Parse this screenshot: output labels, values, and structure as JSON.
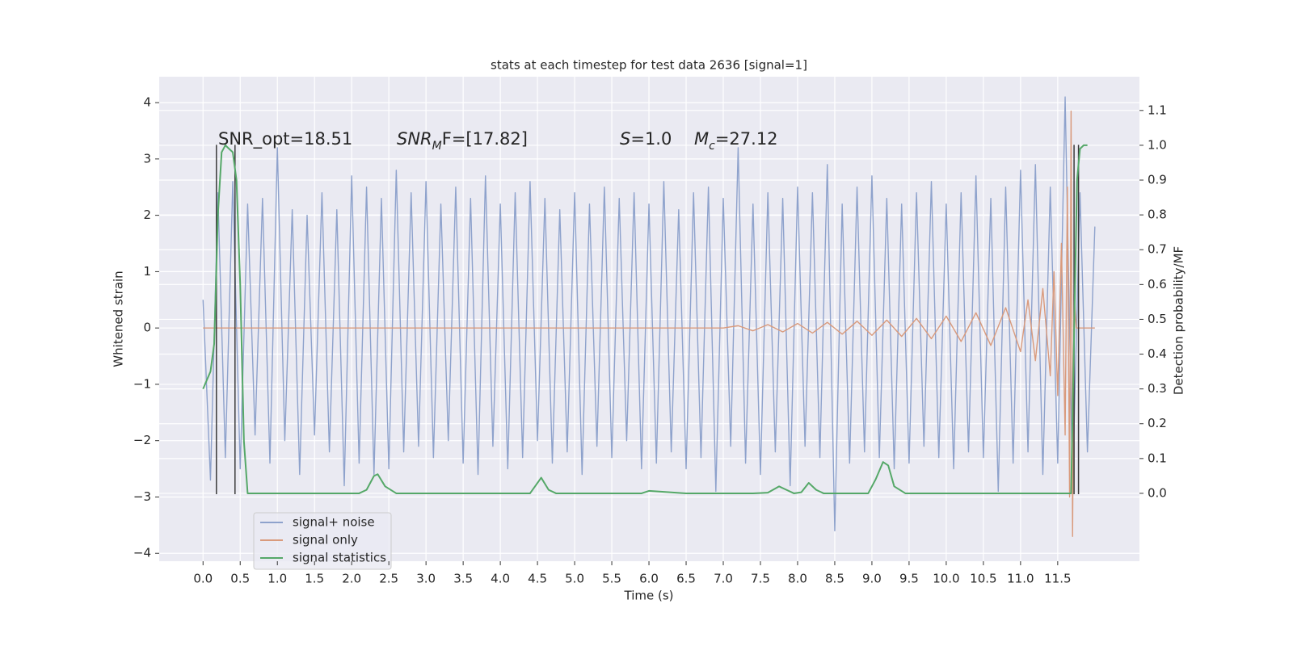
{
  "chart_data": {
    "type": "line",
    "title": "stats at each timestep for test data 2636 [signal=1]",
    "xlabel": "Time (s)",
    "ylabel": "Whitened strain",
    "y2label": "Detection probability/MF",
    "xlim": [
      -0.59,
      12.6
    ],
    "ylim": [
      -4.14,
      4.46
    ],
    "y2lim": [
      -0.195,
      1.197
    ],
    "xticks": [
      {
        "value": 0,
        "label": "0.0"
      },
      0.5,
      {
        "value": 1,
        "label": "1.0"
      },
      1.5,
      {
        "value": 2,
        "label": "2.0"
      },
      2.5,
      {
        "value": 3,
        "label": "3.0"
      },
      3.5,
      {
        "value": 4,
        "label": "4.0"
      },
      4.5,
      {
        "value": 5,
        "label": "5.0"
      },
      5.5,
      {
        "value": 6,
        "label": "6.0"
      },
      6.5,
      {
        "value": 7,
        "label": "7.0"
      },
      7.5,
      {
        "value": 8,
        "label": "8.0"
      },
      8.5,
      {
        "value": 9,
        "label": "9.0"
      },
      9.5,
      {
        "value": 10,
        "label": "10.0"
      },
      10.5,
      {
        "value": 11,
        "label": "11.0"
      },
      11.5
    ],
    "yticks": [
      {
        "value": -4,
        "label": "−4"
      },
      {
        "value": -3,
        "label": "−3"
      },
      {
        "value": -2,
        "label": "−2"
      },
      {
        "value": -1,
        "label": "−1"
      },
      0,
      1,
      2,
      3,
      4
    ],
    "y2ticks": [
      {
        "value": 0,
        "label": "0.0"
      },
      0.1,
      0.2,
      0.3,
      0.4,
      0.5,
      0.6,
      0.7,
      0.8,
      0.9,
      {
        "value": 1,
        "label": "1.0"
      },
      1.1
    ],
    "grid": true,
    "annotations": [
      {
        "parts": [
          {
            "text": "SNR_opt=18.51"
          }
        ]
      },
      {
        "parts": [
          {
            "text": "SNR",
            "style": "italic"
          },
          {
            "text": "M",
            "style": "sub"
          },
          {
            "text": "F=[17.82]"
          }
        ]
      },
      {
        "parts": [
          {
            "text": "S",
            "style": "italic"
          },
          {
            "text": "=1.0"
          }
        ]
      },
      {
        "parts": [
          {
            "text": "M",
            "style": "italic"
          },
          {
            "text": "c",
            "style": "sub"
          },
          {
            "text": "=27.12"
          }
        ]
      }
    ],
    "vlines": {
      "x": [
        0.18,
        0.43,
        11.72,
        11.78
      ],
      "ymin": -2.95,
      "ymax": 3.25,
      "color": "#3a3a3a"
    },
    "series": [
      {
        "name": "signal+ noise",
        "color": "#8ea2cc",
        "x": [
          0,
          0.1,
          0.2,
          0.3,
          0.4,
          0.5,
          0.6,
          0.7,
          0.8,
          0.9,
          1,
          1.1,
          1.2,
          1.3,
          1.4,
          1.5,
          1.6,
          1.7,
          1.8,
          1.9,
          2,
          2.1,
          2.2,
          2.3,
          2.4,
          2.5,
          2.6,
          2.7,
          2.8,
          2.9,
          3,
          3.1,
          3.2,
          3.3,
          3.4,
          3.5,
          3.6,
          3.7,
          3.8,
          3.9,
          4,
          4.1,
          4.2,
          4.3,
          4.4,
          4.5,
          4.6,
          4.7,
          4.8,
          4.9,
          5,
          5.1,
          5.2,
          5.3,
          5.4,
          5.5,
          5.6,
          5.7,
          5.8,
          5.9,
          6,
          6.1,
          6.2,
          6.3,
          6.4,
          6.5,
          6.6,
          6.7,
          6.8,
          6.9,
          7,
          7.1,
          7.2,
          7.3,
          7.4,
          7.5,
          7.6,
          7.7,
          7.8,
          7.9,
          8,
          8.1,
          8.2,
          8.3,
          8.4,
          8.5,
          8.6,
          8.7,
          8.8,
          8.9,
          9,
          9.1,
          9.2,
          9.3,
          9.4,
          9.5,
          9.6,
          9.7,
          9.8,
          9.9,
          10,
          10.1,
          10.2,
          10.3,
          10.4,
          10.5,
          10.6,
          10.7,
          10.8,
          10.9,
          11,
          11.1,
          11.2,
          11.3,
          11.4,
          11.5,
          11.6,
          11.7,
          11.8,
          11.9,
          12
        ],
        "values": [
          0.5,
          -2.7,
          2.4,
          -2.3,
          2.6,
          -2.5,
          2.2,
          -1.9,
          2.3,
          -2.4,
          3.2,
          -2.0,
          2.1,
          -2.6,
          2.0,
          -1.9,
          2.4,
          -2.2,
          2.1,
          -2.8,
          2.7,
          -2.4,
          2.5,
          -2.6,
          2.3,
          -2.5,
          2.8,
          -2.2,
          2.4,
          -2.1,
          2.6,
          -2.3,
          2.2,
          -2.0,
          2.5,
          -2.4,
          2.3,
          -2.6,
          2.7,
          -2.1,
          2.2,
          -2.5,
          2.4,
          -2.3,
          2.6,
          -2.0,
          2.3,
          -2.4,
          2.1,
          -2.2,
          2.4,
          -2.6,
          2.2,
          -2.1,
          2.5,
          -2.3,
          2.3,
          -2.0,
          2.4,
          -2.5,
          2.2,
          -2.4,
          2.6,
          -2.2,
          2.1,
          -2.5,
          2.4,
          -2.3,
          2.5,
          -2.9,
          2.3,
          -2.1,
          3.2,
          -2.4,
          2.2,
          -2.6,
          2.4,
          -2.2,
          2.3,
          -2.8,
          2.5,
          -2.1,
          2.4,
          -2.3,
          2.9,
          -3.6,
          2.2,
          -2.4,
          2.5,
          -2.2,
          2.7,
          -2.3,
          2.3,
          -2.5,
          2.2,
          -2.4,
          2.4,
          -2.1,
          2.6,
          -2.3,
          2.2,
          -2.5,
          2.4,
          -2.2,
          2.7,
          -2.3,
          2.3,
          -2.9,
          2.5,
          -2.4,
          2.8,
          -2.2,
          2.9,
          -2.6,
          2.5,
          -2.4,
          4.1,
          -2.8,
          2.4,
          -2.2,
          1.8
        ]
      },
      {
        "name": "signal only",
        "color": "#d99a7c",
        "x": [
          0,
          7.0,
          7.2,
          7.4,
          7.6,
          7.8,
          8.0,
          8.2,
          8.4,
          8.6,
          8.8,
          9.0,
          9.2,
          9.4,
          9.6,
          9.8,
          10.0,
          10.2,
          10.4,
          10.6,
          10.8,
          11.0,
          11.1,
          11.2,
          11.3,
          11.4,
          11.45,
          11.5,
          11.55,
          11.6,
          11.63,
          11.66,
          11.68,
          11.7,
          11.72,
          11.75,
          12.0
        ],
        "values": [
          0,
          0,
          0.04,
          -0.05,
          0.06,
          -0.07,
          0.08,
          -0.09,
          0.1,
          -0.11,
          0.12,
          -0.13,
          0.14,
          -0.15,
          0.17,
          -0.19,
          0.21,
          -0.24,
          0.27,
          -0.31,
          0.36,
          -0.42,
          0.5,
          -0.58,
          0.7,
          -0.85,
          1.0,
          -1.2,
          1.5,
          -1.9,
          2.5,
          -3.0,
          3.85,
          -3.7,
          0.6,
          0,
          0
        ]
      },
      {
        "name": "signal statistics",
        "color": "#55a868",
        "axis": "y2",
        "x": [
          0,
          0.1,
          0.15,
          0.2,
          0.25,
          0.3,
          0.35,
          0.4,
          0.45,
          0.5,
          0.55,
          0.6,
          2.1,
          2.2,
          2.3,
          2.35,
          2.45,
          2.6,
          4.4,
          4.5,
          4.55,
          4.65,
          4.75,
          5.9,
          6.0,
          6.5,
          7.4,
          7.6,
          7.75,
          7.85,
          7.95,
          8.05,
          8.15,
          8.25,
          8.35,
          8.95,
          9.05,
          9.15,
          9.22,
          9.3,
          9.45,
          11.68,
          11.76,
          11.8,
          11.85,
          11.9
        ],
        "values": [
          0.3,
          0.35,
          0.43,
          0.8,
          0.98,
          1.0,
          0.99,
          0.98,
          0.9,
          0.6,
          0.15,
          0.0,
          0.0,
          0.01,
          0.05,
          0.055,
          0.02,
          0.0,
          0.0,
          0.03,
          0.045,
          0.01,
          0.0,
          0.0,
          0.007,
          0.0,
          0.0,
          0.002,
          0.02,
          0.01,
          0.0,
          0.003,
          0.03,
          0.01,
          0.0,
          0.0,
          0.04,
          0.09,
          0.08,
          0.02,
          0.0,
          0.0,
          0.9,
          0.99,
          1.0,
          1.0
        ]
      }
    ]
  }
}
